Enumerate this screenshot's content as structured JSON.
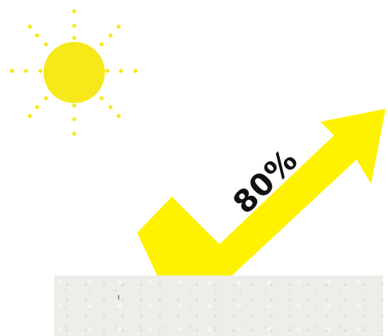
{
  "illustration": {
    "percentage_label": "80%",
    "colors": {
      "sun": "#f7e81a",
      "arrow": "#fff200",
      "label_text": "#111111",
      "surface": "#efede9"
    },
    "icons": [
      "sun-icon",
      "check-arrow-icon",
      "surface-panel"
    ]
  }
}
